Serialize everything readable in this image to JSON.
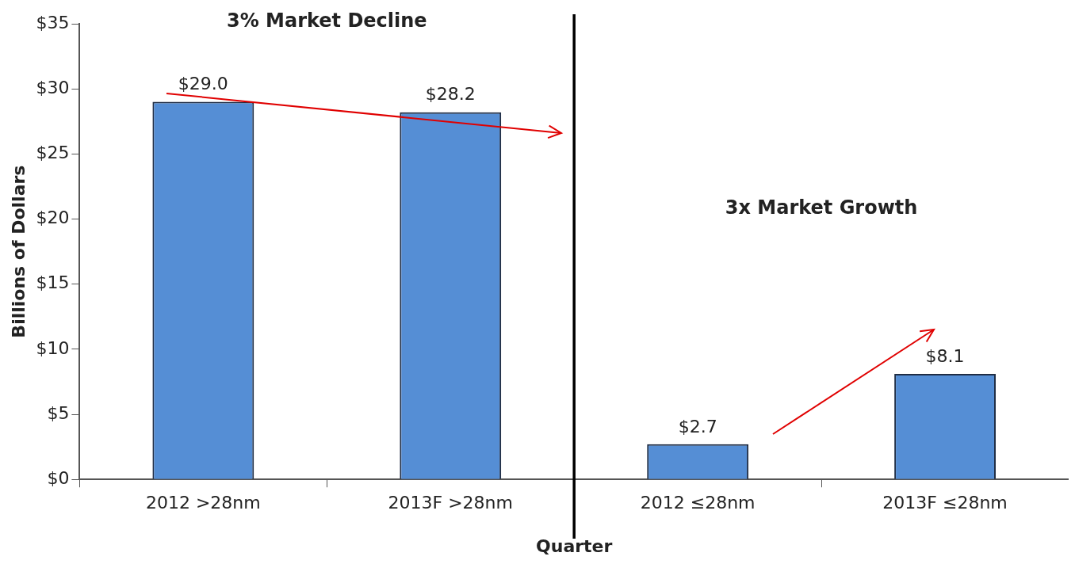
{
  "chart_data": {
    "type": "bar",
    "xlabel": "Quarter",
    "ylabel": "Billions of Dollars",
    "categories": [
      "2012 >28nm",
      "2013F >28nm",
      "2012 ≤28nm",
      "2013F ≤28nm"
    ],
    "values": [
      29.0,
      28.2,
      2.7,
      8.1
    ],
    "value_labels": [
      "$29.0",
      "$28.2",
      "$2.7",
      "$8.1"
    ],
    "color": "#558ed5",
    "ylim": [
      0,
      35
    ],
    "yticks": [
      {
        "value": 0,
        "label": "$0"
      },
      {
        "value": 5,
        "label": "$5"
      },
      {
        "value": 10,
        "label": "$10"
      },
      {
        "value": 15,
        "label": "$15"
      },
      {
        "value": 20,
        "label": "$20"
      },
      {
        "value": 25,
        "label": "$25"
      },
      {
        "value": 30,
        "label": "$30"
      },
      {
        "value": 35,
        "label": "$35"
      }
    ],
    "annotations": [
      "3% Market Decline",
      "3x Market Growth"
    ],
    "grid": false,
    "legend": false
  }
}
